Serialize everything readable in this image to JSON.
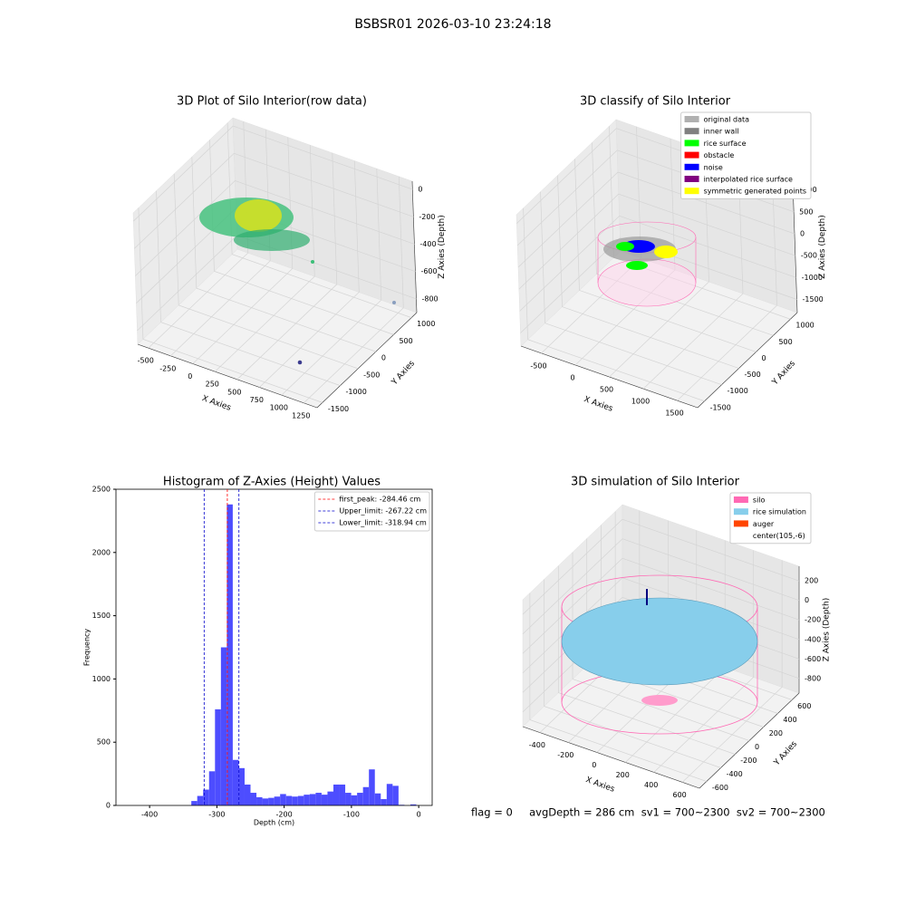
{
  "title": "BSBSR01 2026-03-10 23:24:18",
  "chart_data": [
    {
      "type": "scatter3d",
      "title": "3D Plot of Silo Interior(row data)",
      "xlabel": "X Axies",
      "ylabel": "Y Axies",
      "zlabel": "Z Axies (Depth)",
      "xlim": [
        -620,
        1400
      ],
      "ylim": [
        -1650,
        1150
      ],
      "zlim": [
        -900,
        60
      ],
      "xticks": [
        -500,
        -250,
        0,
        250,
        500,
        750,
        1000,
        1250
      ],
      "yticks": [
        -1500,
        -1000,
        -500,
        0,
        500,
        1000
      ],
      "zticks": [
        -800,
        -600,
        -400,
        -200,
        0
      ],
      "grid": true
    },
    {
      "type": "scatter3d",
      "title": "3D classify of Silo Interior",
      "xlabel": "X Axies",
      "ylabel": "Y Axies",
      "zlabel": "Z Axies (Depth)",
      "xlim": [
        -800,
        1800
      ],
      "ylim": [
        -1700,
        1200
      ],
      "zlim": [
        -1800,
        1200
      ],
      "xticks": [
        -500,
        0,
        500,
        1000,
        1500
      ],
      "yticks": [
        -1500,
        -1000,
        -500,
        0,
        500,
        1000
      ],
      "zticks": [
        -1500,
        -1000,
        -500,
        0,
        500,
        1000
      ],
      "grid": true,
      "legend": [
        {
          "label": "original data",
          "color": "#b0b0b0"
        },
        {
          "label": "inner wall",
          "color": "#808080"
        },
        {
          "label": "rice surface",
          "color": "#00ff00"
        },
        {
          "label": "obstacle",
          "color": "#ff0000"
        },
        {
          "label": "noise",
          "color": "#0000ff"
        },
        {
          "label": "interpolated rice surface",
          "color": "#800080"
        },
        {
          "label": "symmetric generated points",
          "color": "#ffff00"
        }
      ]
    },
    {
      "type": "histogram",
      "title": "Histogram of Z-Axies (Height) Values",
      "xlabel": "Depth (cm)",
      "ylabel": "Frequency",
      "color": "#4d4dff",
      "xlim": [
        -450,
        20
      ],
      "ylim": [
        0,
        2500
      ],
      "xticks": [
        -400,
        -300,
        -200,
        -100,
        0
      ],
      "yticks": [
        0,
        500,
        1000,
        1500,
        2000,
        2500
      ],
      "bins": [
        -338,
        -329.2,
        -320.4,
        -311.6,
        -302.8,
        -294,
        -285.2,
        -276.4,
        -267.6,
        -258.8,
        -250,
        -241.2,
        -232.4,
        -223.6,
        -214.8,
        -206,
        -197.2,
        -188.4,
        -179.6,
        -170.8,
        -162,
        -153.2,
        -144.4,
        -135.6,
        -126.8,
        -118,
        -109.2,
        -100.4,
        -91.6,
        -82.8,
        -74,
        -65.2,
        -56.4,
        -47.6,
        -38.8,
        -30,
        -21.2,
        -12.4,
        -3.6
      ],
      "values": [
        35,
        75,
        125,
        270,
        760,
        1250,
        2380,
        360,
        295,
        165,
        100,
        65,
        55,
        60,
        70,
        90,
        75,
        70,
        75,
        85,
        90,
        100,
        85,
        110,
        165,
        165,
        100,
        80,
        100,
        145,
        285,
        95,
        50,
        170,
        155,
        5,
        0,
        8
      ],
      "vlines": [
        {
          "value": -284.46,
          "label": "first_peak: -284.46 cm",
          "color": "#ff0000"
        },
        {
          "value": -267.22,
          "label": "Upper_limit: -267.22 cm",
          "color": "#0000cc"
        },
        {
          "value": -318.94,
          "label": "Lower_limit: -318.94 cm",
          "color": "#0000cc"
        }
      ]
    },
    {
      "type": "scatter3d",
      "title": "3D simulation of Silo Interior",
      "xlabel": "X Axies",
      "ylabel": "Y Axies",
      "zlabel": "Z Axies (Depth)",
      "xlim": [
        -520,
        720
      ],
      "ylim": [
        -700,
        700
      ],
      "zlim": [
        -950,
        350
      ],
      "xticks": [
        -400,
        -200,
        0,
        200,
        400,
        600
      ],
      "yticks": [
        -600,
        -400,
        -200,
        0,
        200,
        400,
        600
      ],
      "zticks": [
        -800,
        -600,
        -400,
        -200,
        0,
        200
      ],
      "grid": true,
      "legend": [
        {
          "label": "silo",
          "color": "#ff69b4"
        },
        {
          "label": "rice simulation",
          "color": "#87ceeb"
        },
        {
          "label": "auger",
          "color": "#ff4500"
        },
        {
          "label": "center(105,-6)",
          "color": "#ffffff"
        }
      ]
    }
  ],
  "footer": "flag = 0     avgDepth = 286 cm  sv1 = 700~2300  sv2 = 700~2300"
}
